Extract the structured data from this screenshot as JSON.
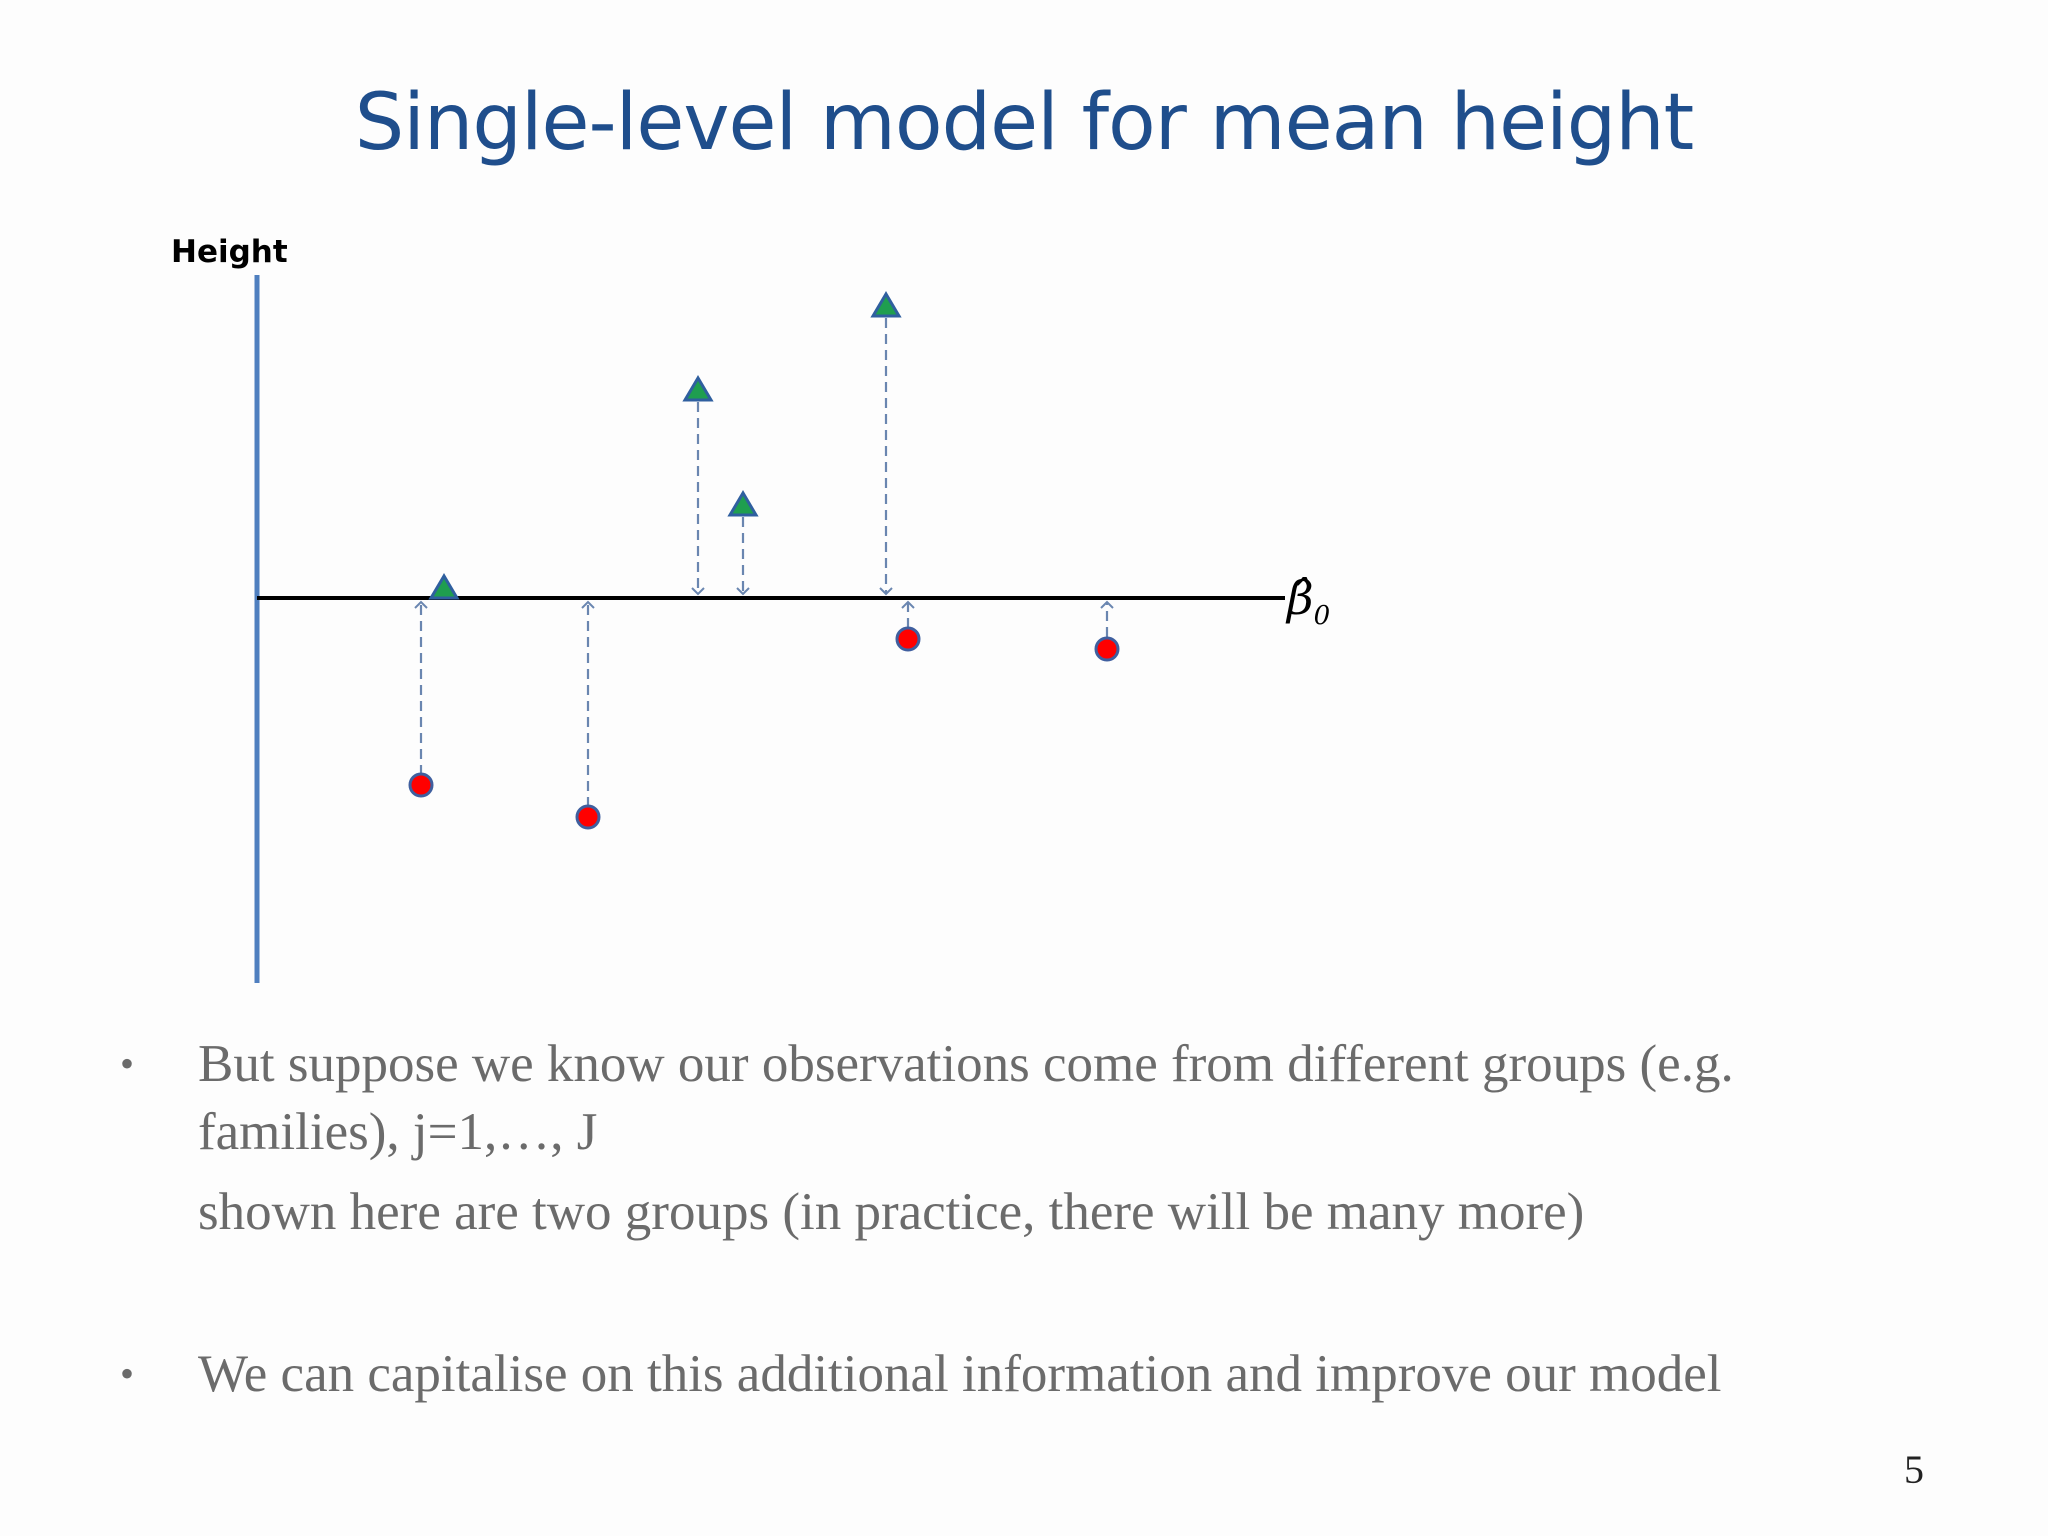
{
  "slide": {
    "title": "Single-level model for mean height",
    "page_number": "5"
  },
  "diagram": {
    "y_axis_label": "Height",
    "mean_line_label": "β̂",
    "mean_line_label_subscript": "0",
    "colors": {
      "axis": "#4f7fbf",
      "mean_line": "#000000",
      "arrow": "#6a86b0",
      "group1_fill": "#1f9e4f",
      "group1_stroke": "#2f5f9f",
      "group2_fill": "#ff0000",
      "group2_stroke": "#3f5f9f"
    },
    "groups": [
      {
        "name": "",
        "marker": "triangle",
        "color": "green"
      },
      {
        "name": "",
        "marker": "circle",
        "color": "red"
      }
    ]
  },
  "bullets": [
    {
      "text_line1": "But suppose we know our observations come from different groups (e.g.",
      "text_line2": "families), j=1,…, J",
      "subtext": "shown here are two groups (in practice, there will be many more)"
    },
    {
      "text_line1": "We can capitalise on this additional information and improve our model"
    }
  ]
}
